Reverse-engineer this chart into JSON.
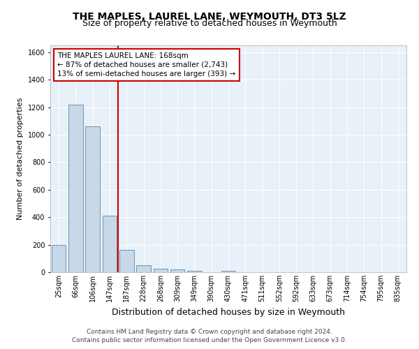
{
  "title": "THE MAPLES, LAUREL LANE, WEYMOUTH, DT3 5LZ",
  "subtitle": "Size of property relative to detached houses in Weymouth",
  "xlabel": "Distribution of detached houses by size in Weymouth",
  "ylabel": "Number of detached properties",
  "categories": [
    "25sqm",
    "66sqm",
    "106sqm",
    "147sqm",
    "187sqm",
    "228sqm",
    "268sqm",
    "309sqm",
    "349sqm",
    "390sqm",
    "430sqm",
    "471sqm",
    "511sqm",
    "552sqm",
    "592sqm",
    "633sqm",
    "673sqm",
    "714sqm",
    "754sqm",
    "795sqm",
    "835sqm"
  ],
  "bar_heights": [
    200,
    1220,
    1060,
    410,
    160,
    50,
    25,
    18,
    10,
    0,
    10,
    0,
    0,
    0,
    0,
    0,
    0,
    0,
    0,
    0,
    0
  ],
  "bar_color": "#c8d8e8",
  "bar_edge_color": "#5588aa",
  "red_line_x": 3.5,
  "red_line_color": "#cc0000",
  "ylim": [
    0,
    1650
  ],
  "yticks": [
    0,
    200,
    400,
    600,
    800,
    1000,
    1200,
    1400,
    1600
  ],
  "annotation_text": "THE MAPLES LAUREL LANE: 168sqm\n← 87% of detached houses are smaller (2,743)\n13% of semi-detached houses are larger (393) →",
  "annotation_box_color": "#ffffff",
  "annotation_box_edge": "#cc0000",
  "footer_line1": "Contains HM Land Registry data © Crown copyright and database right 2024.",
  "footer_line2": "Contains public sector information licensed under the Open Government Licence v3.0.",
  "background_color": "#e8f0f8",
  "grid_color": "#ffffff",
  "title_fontsize": 10,
  "subtitle_fontsize": 9,
  "axis_label_fontsize": 8,
  "ylabel_fontsize": 8,
  "tick_fontsize": 7,
  "annotation_fontsize": 7.5,
  "footer_fontsize": 6.5
}
